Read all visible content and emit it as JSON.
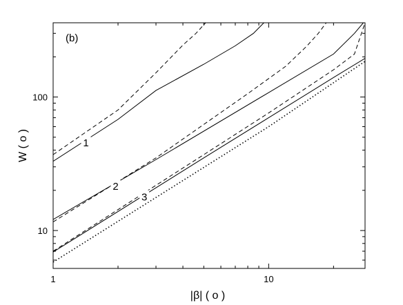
{
  "chart_data": {
    "type": "line",
    "title": "",
    "panel_label": "(b)",
    "xlabel": "|β| ( o )",
    "ylabel": "W ( o )",
    "xscale": "log",
    "yscale": "log",
    "xlim": [
      1,
      28
    ],
    "ylim": [
      5.2,
      360
    ],
    "grid": false,
    "legend": "none",
    "x_ticks": [
      {
        "value": 1,
        "label": "1"
      },
      {
        "value": 10,
        "label": "10"
      }
    ],
    "y_ticks": [
      {
        "value": 10,
        "label": "10"
      },
      {
        "value": 100,
        "label": "100"
      }
    ],
    "series": [
      {
        "style": "solid",
        "color": "#000000",
        "points": [
          [
            1,
            33
          ],
          [
            2,
            68
          ],
          [
            3,
            112
          ],
          [
            5,
            176
          ],
          [
            7,
            242
          ],
          [
            8.5,
            300
          ],
          [
            9.5,
            360
          ]
        ]
      },
      {
        "style": "dashed",
        "color": "#000000",
        "points": [
          [
            1,
            37
          ],
          [
            2,
            80
          ],
          [
            3,
            152
          ],
          [
            4,
            245
          ],
          [
            4.6,
            300
          ],
          [
            5.1,
            360
          ]
        ]
      },
      {
        "style": "solid",
        "color": "#000000",
        "points": [
          [
            1,
            12.1
          ],
          [
            3,
            34
          ],
          [
            10,
            108
          ],
          [
            20,
            210
          ],
          [
            25,
            300
          ],
          [
            27.5,
            360
          ]
        ]
      },
      {
        "style": "dashed",
        "color": "#000000",
        "points": [
          [
            1,
            11.6
          ],
          [
            3,
            35
          ],
          [
            8,
            106
          ],
          [
            12,
            170
          ],
          [
            15,
            240
          ],
          [
            17,
            300
          ],
          [
            18.5,
            360
          ]
        ]
      },
      {
        "style": "solid",
        "color": "#000000",
        "points": [
          [
            1,
            6.9
          ],
          [
            5,
            35
          ],
          [
            10,
            70
          ],
          [
            20,
            140
          ],
          [
            28,
            195
          ]
        ]
      },
      {
        "style": "dashed",
        "color": "#000000",
        "points": [
          [
            1,
            7
          ],
          [
            5,
            37
          ],
          [
            10,
            76
          ],
          [
            20,
            160
          ],
          [
            25,
            210
          ],
          [
            28,
            360
          ]
        ]
      },
      {
        "style": "dotted",
        "color": "#000000",
        "points": [
          [
            1,
            5.8
          ],
          [
            10,
            60
          ],
          [
            28,
            185
          ]
        ]
      }
    ],
    "annotations": [
      {
        "text": "1",
        "x": 1.42,
        "y": 44.8
      },
      {
        "text": "2",
        "x": 1.95,
        "y": 21.2
      },
      {
        "text": "3",
        "x": 2.65,
        "y": 17.6
      }
    ]
  }
}
